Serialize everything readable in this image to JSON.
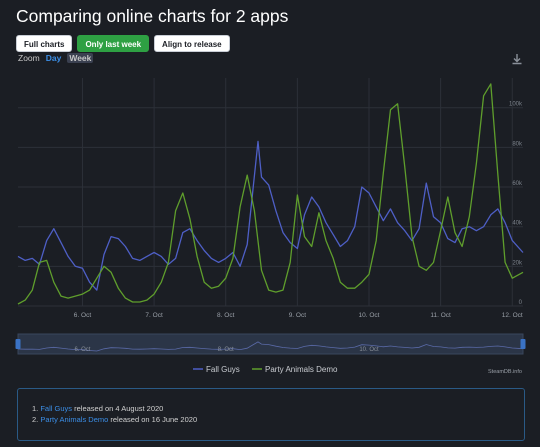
{
  "header": {
    "title": "Comparing online charts for 2 apps",
    "buttons": [
      {
        "label": "Full charts",
        "active": false
      },
      {
        "label": "Only last week",
        "active": true
      },
      {
        "label": "Align to release",
        "active": false
      }
    ],
    "zoom": {
      "label": "Zoom",
      "options": [
        "Day",
        "Week"
      ],
      "selected": "Day"
    }
  },
  "chart_data": {
    "type": "line",
    "x_ticks": [
      "6. Oct",
      "7. Oct",
      "8. Oct",
      "9. Oct",
      "10. Oct",
      "11. Oct",
      "12. Oct"
    ],
    "x_range": [
      5.1,
      12.15
    ],
    "y_ticks": [
      "0",
      "20k",
      "40k",
      "60k",
      "80k",
      "100k"
    ],
    "y_tick_values": [
      0,
      20000,
      40000,
      60000,
      80000,
      100000
    ],
    "ylim": [
      0,
      115000
    ],
    "grid": true,
    "legend": "bottom-center",
    "navigator_ticks": [
      "6. Oct",
      "8. Oct",
      "10. Oct"
    ],
    "series": [
      {
        "name": "Fall Guys",
        "color": "#4e5fc6",
        "x": [
          5.1,
          5.2,
          5.3,
          5.4,
          5.5,
          5.6,
          5.7,
          5.8,
          5.9,
          6.0,
          6.1,
          6.2,
          6.3,
          6.4,
          6.5,
          6.6,
          6.7,
          6.8,
          6.9,
          7.0,
          7.1,
          7.2,
          7.3,
          7.4,
          7.5,
          7.6,
          7.7,
          7.8,
          7.9,
          8.0,
          8.1,
          8.2,
          8.3,
          8.45,
          8.5,
          8.6,
          8.7,
          8.8,
          8.9,
          9.0,
          9.1,
          9.2,
          9.3,
          9.4,
          9.5,
          9.6,
          9.7,
          9.8,
          9.9,
          10.0,
          10.1,
          10.2,
          10.3,
          10.4,
          10.5,
          10.6,
          10.7,
          10.8,
          10.9,
          11.0,
          11.1,
          11.2,
          11.3,
          11.4,
          11.5,
          11.6,
          11.7,
          11.8,
          11.9,
          12.0,
          12.15
        ],
        "y": [
          25000,
          23000,
          24000,
          21000,
          33000,
          39000,
          32000,
          25000,
          20000,
          19000,
          12000,
          8000,
          26000,
          35000,
          34000,
          30000,
          24000,
          23000,
          25000,
          27000,
          25000,
          21000,
          24000,
          37000,
          39000,
          33000,
          28000,
          24000,
          22000,
          24000,
          27000,
          20000,
          31000,
          83000,
          65000,
          61000,
          48000,
          37000,
          32000,
          29000,
          46000,
          55000,
          50000,
          42000,
          36000,
          30000,
          33000,
          40000,
          60000,
          57000,
          50000,
          43000,
          49000,
          42000,
          38000,
          33000,
          39000,
          62000,
          45000,
          42000,
          34000,
          32000,
          39000,
          40000,
          38000,
          40000,
          46000,
          49000,
          42000,
          33000,
          27000
        ]
      },
      {
        "name": "Party Animals Demo",
        "color": "#5f9e2c",
        "x": [
          5.1,
          5.2,
          5.3,
          5.4,
          5.5,
          5.6,
          5.7,
          5.8,
          5.9,
          6.0,
          6.1,
          6.2,
          6.3,
          6.4,
          6.5,
          6.6,
          6.7,
          6.8,
          6.9,
          7.0,
          7.1,
          7.2,
          7.3,
          7.4,
          7.5,
          7.6,
          7.7,
          7.8,
          7.9,
          8.0,
          8.1,
          8.2,
          8.3,
          8.4,
          8.5,
          8.6,
          8.7,
          8.8,
          8.9,
          9.0,
          9.1,
          9.2,
          9.3,
          9.4,
          9.5,
          9.6,
          9.7,
          9.8,
          9.9,
          10.0,
          10.1,
          10.2,
          10.3,
          10.4,
          10.5,
          10.6,
          10.7,
          10.8,
          10.9,
          11.0,
          11.1,
          11.2,
          11.3,
          11.4,
          11.5,
          11.6,
          11.7,
          11.8,
          11.9,
          12.0,
          12.15
        ],
        "y": [
          1000,
          3000,
          8000,
          22000,
          23000,
          12000,
          5000,
          4000,
          5000,
          6000,
          8000,
          14000,
          20000,
          17000,
          9000,
          4000,
          2000,
          2000,
          3000,
          6000,
          12000,
          22000,
          48000,
          57000,
          44000,
          25000,
          12000,
          9000,
          10000,
          14000,
          24000,
          50000,
          66000,
          48000,
          18000,
          8000,
          7000,
          8000,
          22000,
          56000,
          35000,
          30000,
          47000,
          33000,
          24000,
          12000,
          9000,
          9000,
          12000,
          16000,
          33000,
          67000,
          99000,
          102000,
          70000,
          35000,
          20000,
          18000,
          22000,
          38000,
          55000,
          37000,
          30000,
          45000,
          72000,
          106000,
          112000,
          66000,
          22000,
          14000,
          17000
        ]
      }
    ]
  },
  "credit": "SteamDB.info",
  "releases": [
    {
      "name": "Fall Guys",
      "text": " released on 4 August 2020"
    },
    {
      "name": "Party Animals Demo",
      "text": " released on 16 June 2020"
    }
  ]
}
